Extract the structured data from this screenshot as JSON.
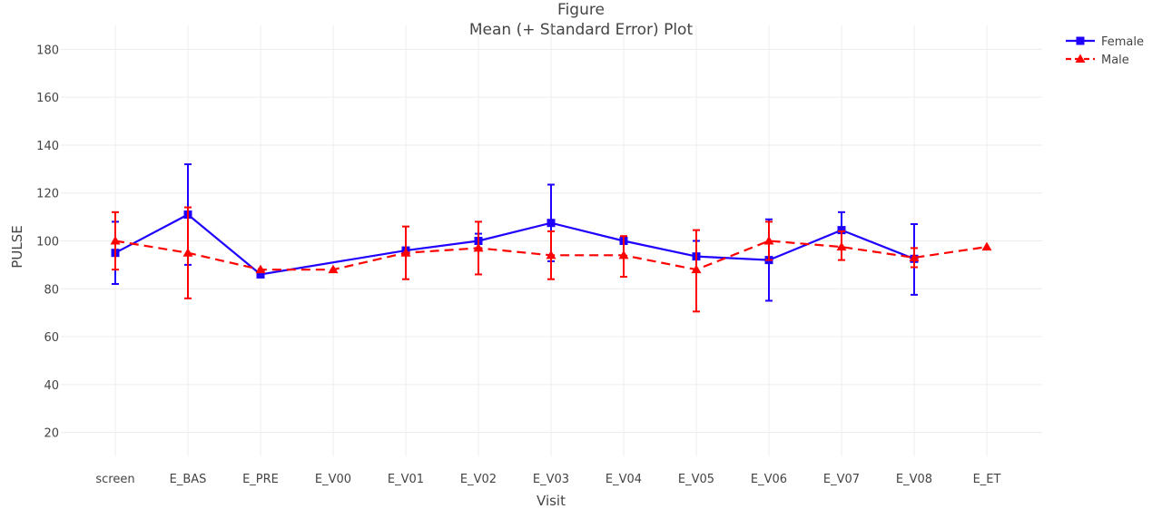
{
  "chart_data": {
    "type": "line",
    "title": "Figure",
    "subtitle": "Mean (+ Standard Error) Plot",
    "xlabel": "Visit",
    "ylabel": "PULSE",
    "ylim": [
      10,
      190
    ],
    "yticks": [
      20,
      40,
      60,
      80,
      100,
      120,
      140,
      160,
      180
    ],
    "categories": [
      "screen",
      "E_BAS",
      "E_PRE",
      "E_V00",
      "E_V01",
      "E_V02",
      "E_V03",
      "E_V04",
      "E_V05",
      "E_V06",
      "E_V07",
      "E_V08",
      "E_ET"
    ],
    "grid": true,
    "legend_position": "top-right",
    "series": [
      {
        "name": "Female",
        "color": "#1f00ff",
        "marker": "square",
        "dash": "solid",
        "values": [
          95,
          111,
          86,
          null,
          96,
          100,
          107.5,
          100,
          93.5,
          92,
          104.5,
          92.5,
          null
        ],
        "upper": [
          108,
          132,
          87,
          null,
          96,
          103,
          123.5,
          101,
          100,
          109,
          112,
          107,
          null
        ],
        "lower": [
          82,
          90,
          85,
          null,
          96,
          97,
          91.5,
          99,
          87,
          75,
          97,
          77.5,
          null
        ]
      },
      {
        "name": "Male",
        "color": "#ff0000",
        "marker": "triangle",
        "dash": "dashed",
        "values": [
          100,
          95,
          88,
          88,
          95,
          97,
          94,
          94,
          88,
          100,
          97.5,
          93,
          97.5
        ],
        "upper": [
          112,
          114,
          88,
          88,
          106,
          108,
          104,
          102,
          104.5,
          108,
          104,
          97,
          97.5
        ],
        "lower": [
          88,
          76,
          88,
          88,
          84,
          86,
          84,
          85,
          70.5,
          92,
          92,
          89,
          97.5
        ]
      }
    ]
  }
}
